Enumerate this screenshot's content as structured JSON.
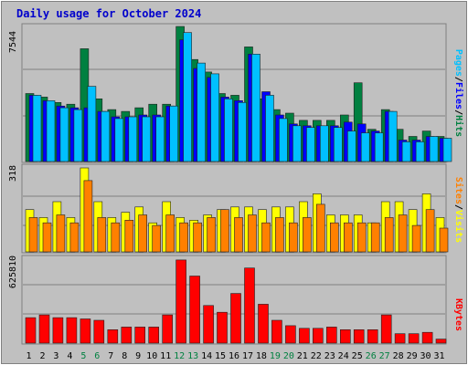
{
  "chart_data": [
    {
      "type": "bar",
      "title": "Daily usage for October 2024",
      "categories": [
        "1",
        "2",
        "3",
        "4",
        "5",
        "6",
        "7",
        "8",
        "9",
        "10",
        "11",
        "12",
        "13",
        "14",
        "15",
        "16",
        "17",
        "18",
        "19",
        "20",
        "21",
        "22",
        "23",
        "24",
        "25",
        "26",
        "27",
        "28",
        "29",
        "30",
        "31"
      ],
      "weekend_days": [
        "5",
        "6",
        "12",
        "13",
        "19",
        "20",
        "26",
        "27"
      ],
      "y_tick_label": "7544",
      "ylim": [
        0,
        7544
      ],
      "ylabel_parts": [
        "Pages",
        "/",
        "Files",
        "/",
        "Hits"
      ],
      "series": [
        {
          "name": "Hits",
          "color": "#008040",
          "values": [
            3800,
            3600,
            3300,
            3200,
            6300,
            3500,
            2900,
            2800,
            3000,
            3200,
            3200,
            7544,
            5700,
            5000,
            3800,
            3700,
            6400,
            3500,
            2900,
            2700,
            2300,
            2300,
            2300,
            2600,
            4400,
            1800,
            2900,
            1800,
            1400,
            1700,
            1400
          ]
        },
        {
          "name": "Files",
          "color": "#0000ff",
          "values": [
            3700,
            3400,
            3100,
            3000,
            3000,
            2800,
            2500,
            2500,
            2600,
            2600,
            3100,
            6800,
            5200,
            4700,
            3600,
            3400,
            6000,
            3900,
            2600,
            2100,
            2000,
            2000,
            2000,
            2200,
            2100,
            1700,
            2800,
            1200,
            1200,
            1400,
            1300
          ]
        },
        {
          "name": "Pages",
          "color": "#00c0ff",
          "values": [
            3700,
            3400,
            3000,
            2900,
            4200,
            2800,
            2400,
            2500,
            2500,
            2500,
            3100,
            7200,
            5500,
            4900,
            3500,
            3300,
            6000,
            3700,
            2400,
            2000,
            1900,
            2000,
            1900,
            1700,
            1600,
            1600,
            2800,
            1100,
            1100,
            1400,
            1300
          ]
        }
      ]
    },
    {
      "type": "bar",
      "categories": [
        "1",
        "2",
        "3",
        "4",
        "5",
        "6",
        "7",
        "8",
        "9",
        "10",
        "11",
        "12",
        "13",
        "14",
        "15",
        "16",
        "17",
        "18",
        "19",
        "20",
        "21",
        "22",
        "23",
        "24",
        "25",
        "26",
        "27",
        "28",
        "29",
        "30",
        "31"
      ],
      "y_tick_label": "318",
      "ylim": [
        0,
        318
      ],
      "ylabel_parts": [
        "Sites",
        "/",
        "Visits"
      ],
      "series": [
        {
          "name": "Visits",
          "color": "#ffff00",
          "values": [
            160,
            130,
            190,
            130,
            318,
            190,
            130,
            150,
            170,
            110,
            190,
            130,
            120,
            140,
            160,
            170,
            170,
            160,
            170,
            170,
            190,
            220,
            140,
            140,
            140,
            110,
            190,
            190,
            160,
            220,
            130
          ]
        },
        {
          "name": "Sites",
          "color": "#ff8000",
          "values": [
            130,
            110,
            140,
            110,
            270,
            130,
            110,
            120,
            140,
            100,
            140,
            110,
            110,
            130,
            160,
            130,
            140,
            110,
            130,
            110,
            130,
            180,
            110,
            110,
            110,
            110,
            130,
            140,
            100,
            160,
            90
          ]
        }
      ]
    },
    {
      "type": "bar",
      "categories": [
        "1",
        "2",
        "3",
        "4",
        "5",
        "6",
        "7",
        "8",
        "9",
        "10",
        "11",
        "12",
        "13",
        "14",
        "15",
        "16",
        "17",
        "18",
        "19",
        "20",
        "21",
        "22",
        "23",
        "24",
        "25",
        "26",
        "27",
        "28",
        "29",
        "30",
        "31"
      ],
      "y_tick_label": "625810",
      "ylim": [
        0,
        625810
      ],
      "ylabel_parts": [
        "KBytes"
      ],
      "series": [
        {
          "name": "KBytes",
          "color": "#ff0000",
          "values": [
            190000,
            210000,
            190000,
            190000,
            180000,
            170000,
            100000,
            120000,
            120000,
            120000,
            210000,
            620000,
            500000,
            280000,
            230000,
            370000,
            560000,
            290000,
            170000,
            130000,
            110000,
            110000,
            120000,
            100000,
            100000,
            100000,
            210000,
            70000,
            70000,
            80000,
            30000
          ]
        }
      ]
    }
  ]
}
